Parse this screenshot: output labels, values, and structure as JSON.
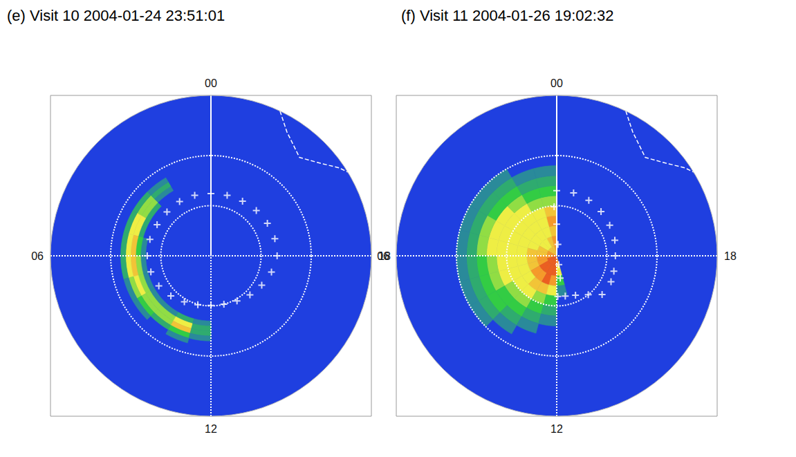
{
  "chart_data": [
    {
      "type": "polar_heatmap",
      "title": "(e) Visit 10 2004-01-24 23:51:01",
      "xlim": [
        0,
        24
      ],
      "xticks": [
        {
          "value": 0,
          "label": "00"
        },
        {
          "value": 6,
          "label": "06"
        },
        {
          "value": 12,
          "label": "12"
        },
        {
          "value": 18,
          "label": "18"
        }
      ],
      "ylim": [
        0,
        32
      ],
      "yticks": [
        0,
        10,
        20
      ],
      "tick_labels": "x",
      "grid": true,
      "color_range": [
        0,
        10
      ],
      "cells": {
        "lt_bins": [
          2,
          3,
          4,
          5,
          6,
          7,
          8,
          9,
          10,
          11,
          12
        ],
        "colat_bins": [
          13,
          14,
          15,
          16,
          17,
          18,
          19
        ],
        "values": [
          [
            null,
            null,
            2,
            3,
            2,
            null
          ],
          [
            null,
            3,
            5,
            5,
            3,
            null
          ],
          [
            null,
            3,
            6,
            6,
            3,
            null
          ],
          [
            2,
            4,
            7,
            6,
            3,
            null
          ],
          [
            2,
            5,
            7,
            6,
            3,
            null
          ],
          [
            2,
            5,
            6,
            5,
            2,
            null
          ],
          [
            2,
            5,
            5,
            4,
            2,
            null
          ],
          [
            2,
            5,
            5,
            3,
            null,
            null
          ],
          [
            3,
            6,
            7,
            4,
            2,
            null
          ],
          [
            2,
            3,
            3,
            2,
            null,
            null
          ]
        ]
      },
      "series": [
        {
          "type": "scatter",
          "marker": "cross",
          "color": "#ffffff",
          "values": [
            [
              0,
              12.4
            ],
            [
              1,
              12.5
            ],
            [
              2,
              12.5
            ],
            [
              3,
              12.4
            ],
            [
              4,
              12.4
            ],
            [
              5,
              12.6
            ],
            [
              6,
              12.7
            ],
            [
              7,
              12.4
            ],
            [
              8,
              12.0
            ],
            [
              9,
              11.3
            ],
            [
              10,
              10.6
            ],
            [
              11,
              10.1
            ],
            [
              12,
              9.9
            ],
            [
              13,
              10.0
            ],
            [
              14,
              10.4
            ],
            [
              15,
              11.0
            ],
            [
              16,
              11.7
            ],
            [
              17,
              12.5
            ],
            [
              18,
              13.2
            ],
            [
              19,
              13.2
            ],
            [
              20,
              13.0
            ],
            [
              21,
              12.8
            ],
            [
              22,
              12.6
            ],
            [
              23,
              12.5
            ]
          ]
        },
        {
          "type": "line",
          "line_style": "dashed",
          "color": "#ffffff",
          "values": [
            [
              22.3,
              32
            ],
            [
              21.9,
              29
            ],
            [
              21.2,
              26.4
            ],
            [
              20.7,
              28.5
            ],
            [
              20.3,
              31
            ],
            [
              20.1,
              32
            ]
          ]
        }
      ]
    },
    {
      "type": "polar_heatmap",
      "title": "(f) Visit 11 2004-01-26 19:02:32",
      "xlim": [
        0,
        24
      ],
      "xticks": [
        {
          "value": 0,
          "label": "00"
        },
        {
          "value": 6,
          "label": "06"
        },
        {
          "value": 12,
          "label": "12"
        },
        {
          "value": 18,
          "label": "18"
        }
      ],
      "ylim": [
        0,
        32
      ],
      "yticks": [
        0,
        10,
        20
      ],
      "tick_labels": "x",
      "grid": true,
      "color_range": [
        0,
        10
      ],
      "cells": {
        "lt_bins": [
          0,
          1,
          2,
          3,
          4,
          5,
          6,
          7,
          8,
          9,
          10,
          11,
          12,
          13
        ],
        "colat_bins": [
          0,
          2,
          4,
          6,
          8,
          10,
          12,
          14,
          16,
          18,
          20
        ],
        "values": [
          [
            8,
            8,
            7,
            8,
            7,
            5,
            4,
            3,
            2,
            null
          ],
          [
            7,
            7,
            6,
            6,
            6,
            5,
            4,
            3,
            2,
            null
          ],
          [
            7,
            6,
            6,
            6,
            6,
            6,
            5,
            4,
            3,
            2
          ],
          [
            7,
            6,
            6,
            6,
            6,
            6,
            6,
            4,
            3,
            2
          ],
          [
            8,
            7,
            6,
            6,
            6,
            6,
            6,
            5,
            3,
            2
          ],
          [
            8,
            7,
            7,
            6,
            6,
            6,
            6,
            5,
            3,
            2
          ],
          [
            8,
            8,
            7,
            6,
            6,
            6,
            5,
            4,
            3,
            2
          ],
          [
            9,
            8,
            7,
            6,
            6,
            6,
            5,
            4,
            3,
            2
          ],
          [
            9,
            9,
            8,
            6,
            6,
            5,
            4,
            4,
            3,
            2
          ],
          [
            9,
            9,
            8,
            7,
            6,
            5,
            4,
            3,
            2,
            null
          ],
          [
            9,
            9,
            9,
            7,
            5,
            4,
            3,
            2,
            null,
            null
          ],
          [
            9,
            9,
            8,
            6,
            4,
            3,
            2,
            null,
            null,
            null
          ],
          [
            8,
            6,
            4,
            2,
            null,
            null,
            null,
            null,
            null,
            null
          ]
        ]
      },
      "series": [
        {
          "type": "scatter",
          "marker": "cross",
          "color": "#ffffff",
          "values": [
            [
              0,
              13.0
            ],
            [
              23,
              13.0
            ],
            [
              22,
              12.8
            ],
            [
              21,
              12.5
            ],
            [
              20,
              12.2
            ],
            [
              19,
              12.0
            ],
            [
              18,
              11.7
            ],
            [
              17,
              11.8
            ],
            [
              16.3,
              12.0
            ],
            [
              15.3,
              11.9
            ],
            [
              14.6,
              10.0
            ],
            [
              13.7,
              8.7
            ],
            [
              12.8,
              8.2
            ],
            [
              12.1,
              8.1
            ],
            [
              12.6,
              4.5
            ],
            [
              12.9,
              1.8
            ],
            [
              23.6,
              2.3
            ],
            [
              0,
              6.3
            ],
            [
              0.2,
              9.8
            ]
          ]
        },
        {
          "type": "line",
          "line_style": "dashed",
          "color": "#ffffff",
          "values": [
            [
              22.3,
              32
            ],
            [
              21.9,
              29
            ],
            [
              21.2,
              26.4
            ],
            [
              20.7,
              28.5
            ],
            [
              20.3,
              31
            ],
            [
              20.1,
              32
            ]
          ]
        }
      ]
    }
  ]
}
